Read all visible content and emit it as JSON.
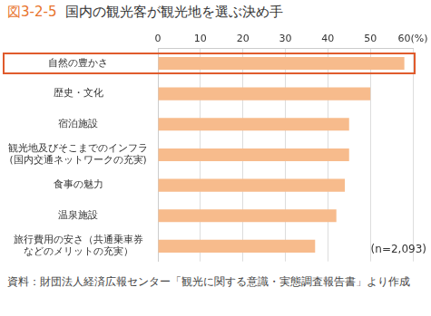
{
  "chart_data": {
    "type": "bar",
    "orientation": "horizontal",
    "title": "図3-2-5　国内の観光客が観光地を選ぶ決め手",
    "categories": [
      "自然の豊かさ",
      "歴史・文化",
      "宿泊施設",
      "観光地及びそこまでのインフラ\n(国内交通ネットワークの充実)",
      "食事の魅力",
      "温泉施設",
      "旅行費用の安さ（共通乗車券\nなどのメリットの充実）"
    ],
    "values": [
      58,
      50,
      45,
      45,
      44,
      42,
      37
    ],
    "color": "#f7bb8c",
    "xlim": [
      0,
      60
    ],
    "xticks": [
      0,
      10,
      20,
      30,
      40,
      50,
      {
        "value": 60,
        "label": "60(%)"
      }
    ],
    "grid": true,
    "annotations": [
      "(n=2,093)"
    ],
    "source": "資料：財団法人経済広報センター「観光に関する意識・実態調査報告書」より作成"
  }
}
